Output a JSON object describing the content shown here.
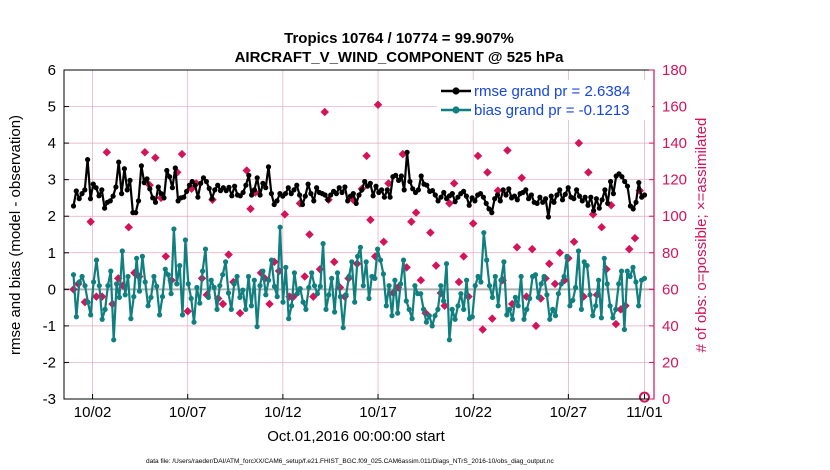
{
  "chart_data": {
    "type": "line",
    "title_line1": "Tropics 10764 / 10774 = 99.907%",
    "title_line2": "AIRCRAFT_V_WIND_COMPONENT @ 525 hPa",
    "ylabel_left": "rmse and bias (model - observation)",
    "ylabel_right": "# of obs: o=possible; ×=assimilated",
    "xlabel": "Oct.01,2016 00:00:00 start",
    "footnote": "data file: /Users/raeder/DAI/ATM_forcXX/CAM6_setup/f.e21.FHIST_BGC.f09_025.CAM6assim.011/Diags_NTrS_2016-10/obs_diag_output.nc",
    "ylim_left": [
      -3,
      6
    ],
    "ylim_right": [
      0,
      180
    ],
    "xlim": [
      0.5,
      31.5
    ],
    "left_ticks": [
      "-3",
      "-2",
      "-1",
      "0",
      "1",
      "2",
      "3",
      "4",
      "5",
      "6"
    ],
    "right_ticks": [
      "0",
      "20",
      "40",
      "60",
      "80",
      "100",
      "120",
      "140",
      "160",
      "180"
    ],
    "x_ticks": [
      {
        "x": 2,
        "label": "10/02"
      },
      {
        "x": 7,
        "label": "10/07"
      },
      {
        "x": 12,
        "label": "10/12"
      },
      {
        "x": 17,
        "label": "10/17"
      },
      {
        "x": 22,
        "label": "10/22"
      },
      {
        "x": 27,
        "label": "10/27"
      },
      {
        "x": 31,
        "label": "11/01"
      }
    ],
    "legend_position": "top-right",
    "colors": {
      "rmse": "#000000",
      "bias": "#0f7f7f",
      "obs": "#d5135a",
      "zero_line": "#b0b0b0",
      "grid": "#e6a8c0",
      "right_axis": "#d5135a",
      "legend_text": "#1646e0"
    },
    "series": [
      {
        "name": "rmse grand pr = 2.6384",
        "key": "rmse",
        "values": [
          2.28,
          2.69,
          2.48,
          2.62,
          2.72,
          3.55,
          2.48,
          2.88,
          2.78,
          2.56,
          2.72,
          2.22,
          2.38,
          2.42,
          2.55,
          2.8,
          3.48,
          2.62,
          3.3,
          2.72,
          2.98,
          2.1,
          2.1,
          2.42,
          3.38,
          2.92,
          3.02,
          2.75,
          2.5,
          2.38,
          2.8,
          2.62,
          2.5,
          3.25,
          3.08,
          2.78,
          3.32,
          2.42,
          2.5,
          2.52,
          2.68,
          2.85,
          2.95,
          2.85,
          2.52,
          2.9,
          3.05,
          2.95,
          2.76,
          2.48,
          2.72,
          2.85,
          2.7,
          2.78,
          2.7,
          2.79,
          2.56,
          2.82,
          2.58,
          2.56,
          2.65,
          2.85,
          3.12,
          2.58,
          2.72,
          3.05,
          2.58,
          2.9,
          2.78,
          3.35,
          2.62,
          2.32,
          2.42,
          2.62,
          2.55,
          2.62,
          2.78,
          2.62,
          2.72,
          2.85,
          2.58,
          2.32,
          2.55,
          2.88,
          2.62,
          2.42,
          2.78,
          2.65,
          2.62,
          2.58,
          2.45,
          2.58,
          2.68,
          2.62,
          2.78,
          2.65,
          2.8,
          2.42,
          2.55,
          2.62,
          2.35,
          2.58,
          2.72,
          2.95,
          2.82,
          2.9,
          2.56,
          2.82,
          2.65,
          2.72,
          2.52,
          2.72,
          2.52,
          3.08,
          3.12,
          2.98,
          3.1,
          2.72,
          3.75,
          2.95,
          2.75,
          2.65,
          2.72,
          3.1,
          2.88,
          2.85,
          2.68,
          2.7,
          2.58,
          2.42,
          2.52,
          2.65,
          2.48,
          2.56,
          2.62,
          2.4,
          2.52,
          2.62,
          2.68,
          2.55,
          2.3,
          2.5,
          2.42,
          2.58,
          2.62,
          2.52,
          2.35,
          2.2,
          2.1,
          2.48,
          2.58,
          2.42,
          2.72,
          2.58,
          2.75,
          2.5,
          2.55,
          2.45,
          2.62,
          2.65,
          2.72,
          2.48,
          2.58,
          2.38,
          2.35,
          2.52,
          2.38,
          2.48,
          1.98,
          2.55,
          2.38,
          2.58,
          2.72,
          2.45,
          2.6,
          2.78,
          2.52,
          2.48,
          2.72,
          2.55,
          2.42,
          2.52,
          2.3,
          2.52,
          2.15,
          2.48,
          2.22,
          2.45,
          2.72,
          2.35,
          2.95,
          2.62,
          3.1,
          3.16,
          3.08,
          2.95,
          2.82,
          2.28,
          2.2,
          2.38,
          2.92,
          2.52,
          2.58
        ]
      },
      {
        "name": "bias grand pr = -0.1213",
        "key": "bias",
        "values": [
          0.4,
          -0.75,
          0.2,
          0.35,
          0.1,
          -0.35,
          -0.7,
          0.2,
          0.8,
          0.1,
          -0.82,
          -0.55,
          0.1,
          0.5,
          -1.38,
          0.15,
          -0.22,
          1.05,
          -0.15,
          0.35,
          -0.8,
          -0.2,
          0.85,
          -0.05,
          0.9,
          0.2,
          -0.45,
          -0.22,
          0.35,
          0.08,
          -0.7,
          -0.2,
          0.55,
          0.4,
          -0.12,
          1.65,
          0.15,
          0.65,
          -0.7,
          1.35,
          0.15,
          -0.25,
          -0.9,
          0.05,
          -0.38,
          0.5,
          1.1,
          -0.22,
          0.25,
          0.05,
          -0.55,
          0.1,
          0.4,
          0.75,
          -0.1,
          -0.55,
          0.15,
          0.35,
          -0.22,
          -0.02,
          -0.55,
          0.35,
          -0.45,
          0.25,
          -1.02,
          0.1,
          0.5,
          -0.15,
          0.25,
          0.8,
          0.08,
          -0.2,
          1.7,
          -0.35,
          0.6,
          -0.8,
          -0.45,
          0.45,
          -0.12,
          0.02,
          -0.35,
          -0.55,
          0.05,
          0.45,
          0.1,
          -0.12,
          0.08,
          1.25,
          -0.55,
          -0.15,
          0.3,
          -0.62,
          0.45,
          -0.2,
          -1.05,
          -0.15,
          0.35,
          0.75,
          -0.35,
          0.9,
          1.15,
          0.1,
          0.75,
          -0.25,
          0.35,
          0.3,
          1.1,
          0.8,
          0.42,
          -0.45,
          0.1,
          -0.72,
          0.25,
          -0.65,
          0.15,
          0.8,
          -0.32,
          -0.55,
          -0.8,
          0.1,
          -0.12,
          -0.12,
          -0.55,
          -0.9,
          -0.72,
          -1.0,
          -0.72,
          -0.55,
          0.1,
          -0.32,
          0.7,
          -1.38,
          -0.55,
          -0.82,
          -0.45,
          -0.12,
          -0.55,
          0.25,
          -0.8,
          -0.75,
          0.1,
          0.35,
          0.2,
          1.55,
          0.8,
          0.1,
          -0.22,
          0.35,
          -0.45,
          0.25,
          0.75,
          -0.7,
          -0.55,
          -0.82,
          -0.22,
          -0.45,
          0.35,
          -0.82,
          -0.55,
          -0.25,
          0.35,
          0.4,
          -0.22,
          0.15,
          0.35,
          -0.15,
          -0.82,
          -0.55,
          -0.72,
          -0.12,
          0.15,
          0.35,
          0.9,
          -0.45,
          -0.3,
          0.05,
          1.05,
          -0.55,
          0.75,
          0.65,
          -0.15,
          -0.72,
          -0.45,
          0.25,
          -0.78,
          0.85,
          0.15,
          -0.45,
          -0.78,
          -0.55,
          0.15,
          0.5,
          -1.1,
          0.5,
          0.35,
          0.6,
          0.2,
          -0.45,
          0.25,
          0.3
        ]
      }
    ],
    "obs_scatter": {
      "name": "# of obs (right axis)",
      "points": [
        [
          1.0,
          60
        ],
        [
          1.25,
          63
        ],
        [
          1.6,
          53
        ],
        [
          1.9,
          97
        ],
        [
          2.2,
          56
        ],
        [
          2.5,
          56
        ],
        [
          2.75,
          135
        ],
        [
          3.05,
          52
        ],
        [
          3.35,
          66
        ],
        [
          3.6,
          62
        ],
        [
          3.9,
          94
        ],
        [
          4.2,
          69
        ],
        [
          4.45,
          67
        ],
        [
          4.75,
          135
        ],
        [
          5.0,
          117
        ],
        [
          5.3,
          132
        ],
        [
          5.6,
          110
        ],
        [
          5.85,
          78
        ],
        [
          6.15,
          65
        ],
        [
          6.45,
          124
        ],
        [
          6.7,
          134
        ],
        [
          7.0,
          48
        ],
        [
          7.2,
          115
        ],
        [
          7.45,
          118
        ],
        [
          7.75,
          66
        ],
        [
          8.0,
          57
        ],
        [
          8.3,
          109
        ],
        [
          8.6,
          55
        ],
        [
          8.85,
          52
        ],
        [
          9.15,
          79
        ],
        [
          9.4,
          64
        ],
        [
          9.75,
          47
        ],
        [
          10.1,
          125
        ],
        [
          10.3,
          104
        ],
        [
          10.55,
          113
        ],
        [
          10.85,
          69
        ],
        [
          11.05,
          66
        ],
        [
          11.3,
          52
        ],
        [
          11.55,
          75
        ],
        [
          11.8,
          70
        ],
        [
          12.1,
          101
        ],
        [
          12.35,
          56
        ],
        [
          12.55,
          56
        ],
        [
          12.9,
          107
        ],
        [
          13.15,
          67
        ],
        [
          13.4,
          90
        ],
        [
          13.6,
          56
        ],
        [
          13.95,
          71
        ],
        [
          14.2,
          157
        ],
        [
          14.4,
          109
        ],
        [
          14.7,
          75
        ],
        [
          15.0,
          61
        ],
        [
          15.25,
          56
        ],
        [
          15.45,
          66
        ],
        [
          15.7,
          109
        ],
        [
          15.9,
          74
        ],
        [
          16.15,
          115
        ],
        [
          16.4,
          133
        ],
        [
          16.6,
          98
        ],
        [
          16.85,
          78
        ],
        [
          17.0,
          161
        ],
        [
          17.3,
          86
        ],
        [
          17.55,
          118
        ],
        [
          17.8,
          58
        ],
        [
          18.05,
          61
        ],
        [
          18.3,
          134
        ],
        [
          18.5,
          72
        ],
        [
          18.75,
          97
        ],
        [
          19.0,
          102
        ],
        [
          19.25,
          65
        ],
        [
          19.5,
          47
        ],
        [
          19.75,
          91
        ],
        [
          20.05,
          73
        ],
        [
          20.3,
          58
        ],
        [
          20.5,
          51
        ],
        [
          20.75,
          107
        ],
        [
          21.0,
          118
        ],
        [
          21.25,
          64
        ],
        [
          21.5,
          78
        ],
        [
          21.75,
          56
        ],
        [
          22.0,
          96
        ],
        [
          22.25,
          133
        ],
        [
          22.5,
          38
        ],
        [
          22.75,
          124
        ],
        [
          23.0,
          44
        ],
        [
          23.3,
          114
        ],
        [
          23.55,
          65
        ],
        [
          23.8,
          136
        ],
        [
          24.05,
          52
        ],
        [
          24.3,
          83
        ],
        [
          24.55,
          121
        ],
        [
          24.8,
          56
        ],
        [
          25.1,
          82
        ],
        [
          25.3,
          40
        ],
        [
          25.55,
          55
        ],
        [
          25.8,
          66
        ],
        [
          26.0,
          74
        ],
        [
          26.3,
          63
        ],
        [
          26.55,
          80
        ],
        [
          26.8,
          65
        ],
        [
          27.0,
          77
        ],
        [
          27.3,
          86
        ],
        [
          27.55,
          140
        ],
        [
          27.8,
          56
        ],
        [
          28.05,
          124
        ],
        [
          28.3,
          101
        ],
        [
          28.5,
          57
        ],
        [
          28.75,
          94
        ],
        [
          29.0,
          71
        ],
        [
          29.25,
          106
        ],
        [
          29.5,
          41
        ],
        [
          29.75,
          49
        ],
        [
          30.0,
          51
        ],
        [
          30.2,
          82
        ],
        [
          30.5,
          88
        ],
        [
          30.75,
          114
        ],
        [
          31.0,
          1
        ]
      ]
    }
  }
}
